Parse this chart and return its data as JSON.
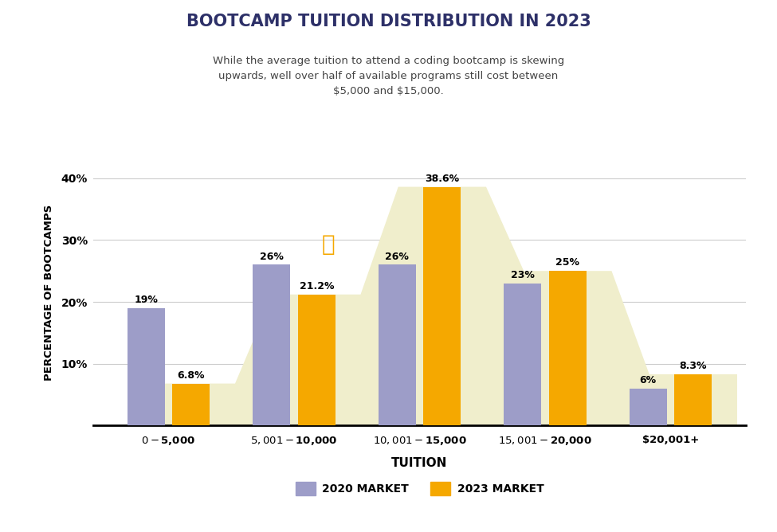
{
  "title": "BOOTCAMP TUITION DISTRIBUTION IN 2023",
  "subtitle": "While the average tuition to attend a coding bootcamp is skewing\nupwards, well over half of available programs still cost between\n$5,000 and $15,000.",
  "categories": [
    "$0- $5,000",
    "$5,001-$10,000",
    "$10,001- $15,000",
    "$15,001- $20,000",
    "$20,001+"
  ],
  "values_2020": [
    19,
    26,
    26,
    23,
    6
  ],
  "values_2023": [
    6.8,
    21.2,
    38.6,
    25,
    8.3
  ],
  "labels_2020": [
    "19%",
    "26%",
    "26%",
    "23%",
    "6%"
  ],
  "labels_2023": [
    "6.8%",
    "21.2%",
    "38.6%",
    "25%",
    "8.3%"
  ],
  "color_2020": "#9d9dc8",
  "color_2023": "#f5a800",
  "color_shadow": "#f0eecc",
  "title_color": "#2d3068",
  "subtitle_color": "#444444",
  "ylabel": "PERCENTAGE OF BOOTCAMPS",
  "xlabel": "TUITION",
  "legend_2020": "2020 MARKET",
  "legend_2023": "2023 MARKET",
  "ylim": [
    0,
    43
  ],
  "yticks": [
    10,
    20,
    30,
    40
  ],
  "ytick_labels": [
    "10%",
    "20%",
    "30%",
    "40%"
  ],
  "footer_color": "#7b7fa8",
  "bar_width": 0.3
}
